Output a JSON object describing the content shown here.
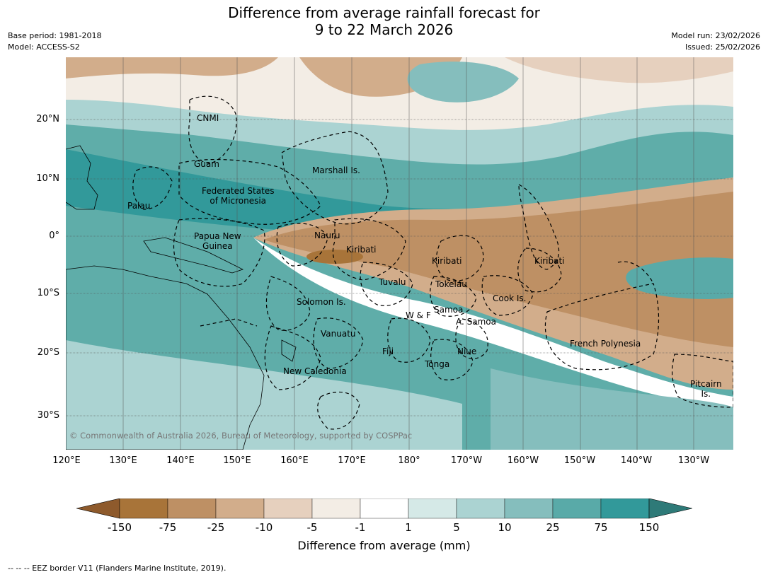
{
  "title": {
    "line1": "Difference from average rainfall forecast for",
    "line2": "9 to 22 March 2026"
  },
  "meta": {
    "base_period": "Base period: 1981-2018",
    "model": "Model: ACCESS-S2",
    "model_run": "Model run: 23/02/2026",
    "issued": "Issued: 25/02/2026"
  },
  "axes": {
    "latitude_ticks": [
      "20°N",
      "10°N",
      "0°",
      "10°S",
      "20°S",
      "30°S"
    ],
    "longitude_ticks": [
      "120°E",
      "130°E",
      "140°E",
      "150°E",
      "160°E",
      "170°E",
      "180°",
      "170°W",
      "160°W",
      "150°W",
      "140°W",
      "130°W"
    ]
  },
  "regions": {
    "cnmi": "CNMI",
    "guam": "Guam",
    "marshall": "Marshall Is.",
    "fsm1": "Federated States",
    "fsm2": "of Micronesia",
    "palau": "Palau",
    "png1": "Papua New",
    "png2": "Guinea",
    "nauru": "Nauru",
    "kiribati_w": "Kiribati",
    "kiribati_c": "Kiribati",
    "kiribati_e": "Kiribati",
    "tuvalu": "Tuvalu",
    "tokelau": "Tokelau",
    "cook": "Cook Is.",
    "solomon": "Solomon Is.",
    "wf": "W & F",
    "samoa": "Samoa",
    "asamoa": "A. Samoa",
    "vanuatu": "Vanuatu",
    "fiji": "Fiji",
    "niue": "Niue",
    "tonga": "Tonga",
    "new_caledonia": "New Caledonia",
    "french_polynesia": "French Polynesia",
    "pitcairn1": "Pitcairn",
    "pitcairn2": "Is."
  },
  "copyright": "© Commonwealth of Australia 2026, Bureau of Meteorology, supported by COSPPac",
  "colorbar": {
    "title": "Difference from average (mm)",
    "ticks": [
      "-150",
      "-75",
      "-25",
      "-10",
      "-5",
      "-1",
      "1",
      "5",
      "10",
      "25",
      "75",
      "150"
    ],
    "colors": [
      "#a87439",
      "#be9064",
      "#d2ad8b",
      "#e6d0be",
      "#f3ede5",
      "#ffffff",
      "#d5e9e7",
      "#abd3d2",
      "#85bebd",
      "#59aaa8",
      "#32999a"
    ],
    "extend_low": "#8e5a2c",
    "extend_high": "#2e7a78"
  },
  "footer": "--  --  -- EEZ border V11 (Flanders Marine Institute, 2019)."
}
